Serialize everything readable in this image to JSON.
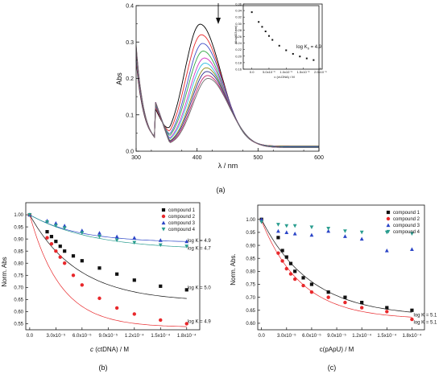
{
  "chart_data": [
    {
      "id": "a",
      "type": "line",
      "caption": "(a)",
      "xlabel": "λ / nm",
      "ylabel": "Abs",
      "xlim": [
        300,
        600
      ],
      "ylim": [
        0,
        0.4
      ],
      "xticks": [
        "300",
        "400",
        "500",
        "600"
      ],
      "yticks": [
        "0.0",
        "0.1",
        "0.2",
        "0.3",
        "0.4"
      ],
      "grid": false,
      "colors": [
        "#000000",
        "#e8282b",
        "#3f4bc6",
        "#31a844",
        "#d233c2",
        "#2fbce0",
        "#8c8c14",
        "#2b2b8a",
        "#c2266b",
        "#6f6f6f"
      ],
      "spectra": [
        {
          "peak": 0.335,
          "peak_x": 405,
          "min": 0.122,
          "start": 0.25,
          "tail": 0.014
        },
        {
          "peak": 0.306,
          "peak_x": 407,
          "min": 0.128,
          "start": 0.258,
          "tail": 0.014
        },
        {
          "peak": 0.283,
          "peak_x": 409,
          "min": 0.133,
          "start": 0.264,
          "tail": 0.013
        },
        {
          "peak": 0.262,
          "peak_x": 410,
          "min": 0.137,
          "start": 0.269,
          "tail": 0.013
        },
        {
          "peak": 0.244,
          "peak_x": 412,
          "min": 0.14,
          "start": 0.274,
          "tail": 0.012
        },
        {
          "peak": 0.23,
          "peak_x": 413,
          "min": 0.142,
          "start": 0.278,
          "tail": 0.012
        },
        {
          "peak": 0.218,
          "peak_x": 415,
          "min": 0.143,
          "start": 0.282,
          "tail": 0.011
        },
        {
          "peak": 0.208,
          "peak_x": 416,
          "min": 0.143,
          "start": 0.286,
          "tail": 0.011
        },
        {
          "peak": 0.198,
          "peak_x": 417,
          "min": 0.142,
          "start": 0.289,
          "tail": 0.01
        },
        {
          "peak": 0.19,
          "peak_x": 418,
          "min": 0.141,
          "start": 0.292,
          "tail": 0.01
        }
      ],
      "inset": {
        "ylabel": "Abs(403 nm)",
        "xlabel": "c (ct-DNA) / M",
        "xlim": [
          -2.5e-06,
          2.05e-05
        ],
        "ylim": [
          0.16,
          0.36
        ],
        "xticks": [
          {
            "v": 0,
            "label": "0.0"
          },
          {
            "v": 5e-06,
            "label": "5.0x10⁻⁶"
          },
          {
            "v": 1e-05,
            "label": "1.0x10⁻⁵"
          },
          {
            "v": 1.5e-05,
            "label": "1.5x10⁻⁵"
          },
          {
            "v": 2e-05,
            "label": "2.0x10⁻⁵"
          }
        ],
        "yticks": [
          "0.36",
          "0.34",
          "0.32",
          "0.30",
          "0.28",
          "0.26",
          "0.24",
          "0.22",
          "0.20",
          "0.18",
          "0.16"
        ],
        "points": [
          [
            0.0,
            0.335
          ],
          [
            2e-06,
            0.305
          ],
          [
            3e-06,
            0.29
          ],
          [
            4e-06,
            0.276
          ],
          [
            5e-06,
            0.262
          ],
          [
            6e-06,
            0.25
          ],
          [
            8e-06,
            0.232
          ],
          [
            1e-05,
            0.218
          ],
          [
            1.2e-05,
            0.207
          ],
          [
            1.4e-05,
            0.199
          ],
          [
            1.6e-05,
            0.193
          ],
          [
            1.8e-05,
            0.188
          ]
        ],
        "annotation": "log K",
        "annotation_sub": "b",
        "annotation_value": " = 4.9"
      }
    },
    {
      "id": "b",
      "type": "scatter",
      "caption": "(b)",
      "xlabel_prefix": "c",
      "xlabel_rest": " (ctDNA) / M",
      "ylabel": "Norm. Abs",
      "xlim": [
        -4.5e-06,
        0.000195
      ],
      "ylim": [
        0.525,
        1.05
      ],
      "yticks": [
        "0.55",
        "0.60",
        "0.65",
        "0.70",
        "0.75",
        "0.80",
        "0.85",
        "0.90",
        "0.95",
        "1.00"
      ],
      "xticks": [
        {
          "v": 0,
          "label": "0.0"
        },
        {
          "v": 3e-05,
          "label": "3.0x10⁻⁵"
        },
        {
          "v": 6e-05,
          "label": "6.0x10⁻⁵"
        },
        {
          "v": 9e-05,
          "label": "9.0x10⁻⁵"
        },
        {
          "v": 0.00012,
          "label": "1.2x10⁻⁴"
        },
        {
          "v": 0.00015,
          "label": "1.5x10⁻⁴"
        },
        {
          "v": 0.00018,
          "label": "1.8x10⁻⁴"
        }
      ],
      "series": [
        {
          "name": "compound 1",
          "marker": "square",
          "color": "#111111",
          "x": [
            0,
            2e-05,
            2.5e-05,
            3e-05,
            3.5e-05,
            4e-05,
            5e-05,
            6e-05,
            8e-05,
            0.0001,
            0.00012,
            0.00015,
            0.00018
          ],
          "y": [
            1.0,
            0.93,
            0.91,
            0.89,
            0.87,
            0.85,
            0.83,
            0.81,
            0.78,
            0.755,
            0.73,
            0.705,
            0.69
          ],
          "fit": {
            "end": 0.64,
            "k": 18000
          }
        },
        {
          "name": "compound 2",
          "marker": "circle",
          "color": "#e8282b",
          "x": [
            0,
            2e-05,
            2.5e-05,
            3e-05,
            3.5e-05,
            4e-05,
            5e-05,
            6e-05,
            8e-05,
            0.0001,
            0.00012,
            0.00015,
            0.00018
          ],
          "y": [
            1.0,
            0.905,
            0.88,
            0.85,
            0.825,
            0.8,
            0.75,
            0.71,
            0.655,
            0.615,
            0.59,
            0.565,
            0.55
          ],
          "fit": {
            "end": 0.535,
            "k": 28000
          }
        },
        {
          "name": "compound 3",
          "marker": "triangle-up",
          "color": "#2b45c7",
          "x": [
            0,
            2e-05,
            3e-05,
            4e-05,
            6e-05,
            8e-05,
            0.0001,
            0.00012,
            0.00015,
            0.00018
          ],
          "y": [
            1.0,
            0.975,
            0.965,
            0.955,
            0.935,
            0.925,
            0.91,
            0.905,
            0.895,
            0.89
          ],
          "fit": {
            "end": 0.885,
            "k": 18000
          }
        },
        {
          "name": "compound 4",
          "marker": "triangle-down",
          "color": "#2a9d8f",
          "x": [
            0,
            2e-05,
            3e-05,
            4e-05,
            6e-05,
            8e-05,
            0.0001,
            0.00012,
            0.00015,
            0.00018
          ],
          "y": [
            1.0,
            0.97,
            0.955,
            0.945,
            0.925,
            0.91,
            0.895,
            0.885,
            0.875,
            0.87
          ],
          "fit": {
            "end": 0.855,
            "k": 14000
          }
        }
      ],
      "annotations": [
        {
          "text": "log K = 4.9",
          "x": 0.000181,
          "y": 0.893
        },
        {
          "text": "log K = 4.7",
          "x": 0.000181,
          "y": 0.862
        },
        {
          "text": "log K = 5.0",
          "x": 0.000181,
          "y": 0.7
        },
        {
          "text": "log K = 4.9",
          "x": 0.000181,
          "y": 0.56
        }
      ],
      "legend_position": "top-right"
    },
    {
      "id": "c",
      "type": "scatter",
      "caption": "(c)",
      "xlabel": "c(pApU) / M",
      "ylabel": "Norm. Abs.",
      "xlim": [
        -4.5e-06,
        0.000195
      ],
      "ylim": [
        0.575,
        1.055
      ],
      "yticks": [
        "0.60",
        "0.65",
        "0.70",
        "0.75",
        "0.80",
        "0.85",
        "0.90",
        "0.95",
        "1.00"
      ],
      "xticks": [
        {
          "v": 0,
          "label": "0.0"
        },
        {
          "v": 3e-05,
          "label": "3.0x10⁻⁵"
        },
        {
          "v": 6e-05,
          "label": "6.0x10⁻⁵"
        },
        {
          "v": 9e-05,
          "label": "9.0x10⁻⁵"
        },
        {
          "v": 0.00012,
          "label": "1.2x10⁻⁴"
        },
        {
          "v": 0.00015,
          "label": "1.5x10⁻⁴"
        },
        {
          "v": 0.00018,
          "label": "1.8x10⁻⁴"
        }
      ],
      "series": [
        {
          "name": "compound 1",
          "marker": "square",
          "color": "#111111",
          "x": [
            0,
            2e-05,
            2.5e-05,
            3e-05,
            3.5e-05,
            4e-05,
            5e-05,
            6e-05,
            8e-05,
            0.0001,
            0.00012,
            0.00015,
            0.00018
          ],
          "y": [
            1.0,
            0.93,
            0.88,
            0.855,
            0.83,
            0.8,
            0.775,
            0.75,
            0.72,
            0.7,
            0.68,
            0.66,
            0.65
          ],
          "fit": {
            "end": 0.625,
            "k": 17000
          }
        },
        {
          "name": "compound 2",
          "marker": "circle",
          "color": "#e8282b",
          "x": [
            0,
            2e-05,
            2.5e-05,
            3e-05,
            3.5e-05,
            4e-05,
            5e-05,
            6e-05,
            8e-05,
            0.0001,
            0.00012,
            0.00015,
            0.00018
          ],
          "y": [
            0.995,
            0.87,
            0.84,
            0.81,
            0.79,
            0.77,
            0.745,
            0.72,
            0.7,
            0.68,
            0.66,
            0.645,
            0.615
          ],
          "fit": {
            "end": 0.615,
            "k": 21000
          }
        },
        {
          "name": "compound 3",
          "marker": "triangle-up",
          "color": "#2b45c7",
          "x": [
            0,
            2e-05,
            3e-05,
            4e-05,
            6e-05,
            8e-05,
            0.0001,
            0.00012,
            0.00015,
            0.00018
          ],
          "y": [
            1.0,
            0.955,
            0.95,
            0.945,
            0.94,
            0.955,
            0.935,
            0.925,
            0.88,
            0.885
          ],
          "fit": null
        },
        {
          "name": "compound 4",
          "marker": "triangle-down",
          "color": "#2a9d8f",
          "x": [
            0,
            2e-05,
            3e-05,
            4e-05,
            6e-05,
            8e-05,
            0.0001,
            0.00012,
            0.00015,
            0.00018
          ],
          "y": [
            0.99,
            0.98,
            0.975,
            0.975,
            0.97,
            0.965,
            0.955,
            0.95,
            0.95,
            0.945
          ],
          "fit": null
        }
      ],
      "annotations": [
        {
          "text": "log K = 5.1",
          "x": 0.000182,
          "y": 0.632
        },
        {
          "text": "log K = 5.1",
          "x": 0.000182,
          "y": 0.604
        }
      ],
      "legend_position": "top-right"
    }
  ]
}
